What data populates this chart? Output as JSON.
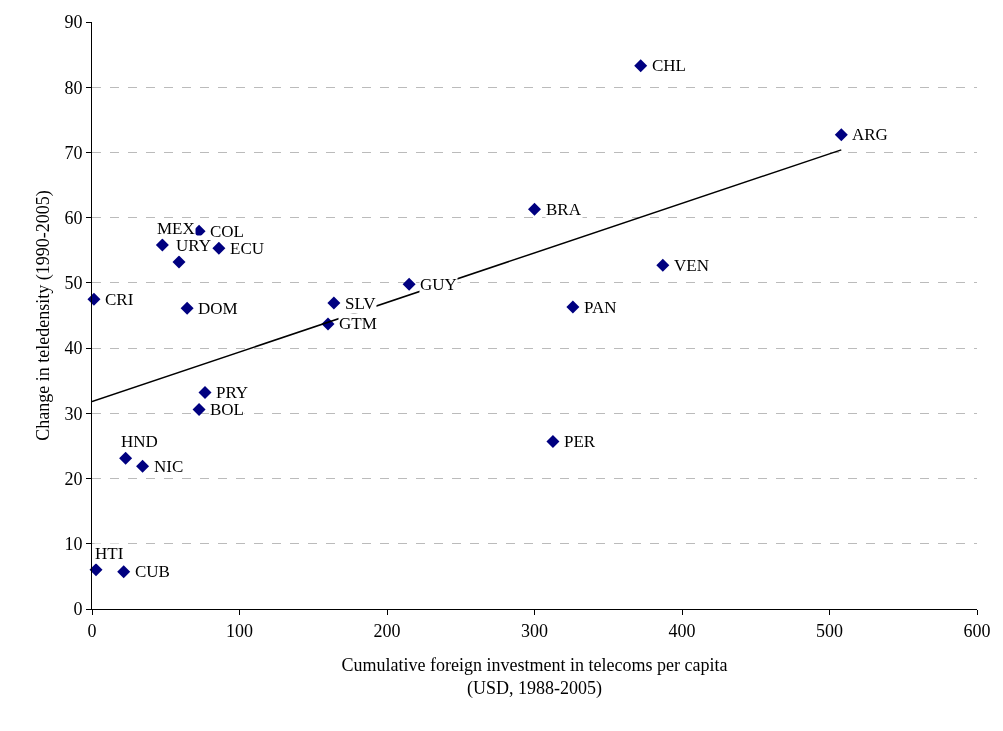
{
  "chart_data": {
    "type": "scatter",
    "xlabel": "Cumulative foreign investment in telecoms per capita\n(USD, 1988-2005)",
    "ylabel": "Change in teledensity (1990-2005)",
    "xlim": [
      0,
      600
    ],
    "xticks": [
      0,
      100,
      200,
      300,
      400,
      500,
      600
    ],
    "ylim": [
      0,
      90
    ],
    "yticks": [
      0,
      10,
      20,
      30,
      40,
      50,
      60,
      70,
      80,
      90
    ],
    "grid": "y",
    "marker": "diamond",
    "series": [
      {
        "color": "#000080",
        "x": [
          372,
          508,
          300,
          387,
          326,
          312.5,
          215,
          164,
          160,
          72.6,
          47.7,
          86,
          59,
          1.3,
          64.5,
          76.6,
          72.6,
          22.8,
          34.3,
          2.7,
          21.5
        ],
        "values": [
          83.3,
          72.7,
          61.3,
          52.7,
          46.3,
          25.7,
          49.8,
          46.9,
          43.7,
          57.9,
          55.8,
          55.3,
          53.2,
          47.5,
          46.1,
          33.2,
          30.6,
          23.1,
          21.9,
          6.0,
          5.7
        ]
      },
      {
        "type": "line",
        "marker": "none",
        "color": "#000000",
        "x": [
          0,
          508
        ],
        "values": [
          31.8,
          70.4
        ]
      }
    ],
    "annotations": [
      {
        "text": "CHL",
        "x": 372,
        "y": 83.3
      },
      {
        "text": "ARG",
        "x": 508,
        "y": 72.7
      },
      {
        "text": "BRA",
        "x": 300,
        "y": 61.3
      },
      {
        "text": "VEN",
        "x": 387,
        "y": 52.7
      },
      {
        "text": "PAN",
        "x": 326,
        "y": 46.3
      },
      {
        "text": "PER",
        "x": 312.5,
        "y": 25.7
      },
      {
        "text": "GUY",
        "x": 215,
        "y": 49.8
      },
      {
        "text": "SLV",
        "x": 164,
        "y": 46.9
      },
      {
        "text": "GTM",
        "x": 160,
        "y": 43.7
      },
      {
        "text": "COL",
        "x": 72.6,
        "y": 57.9
      },
      {
        "text": "MEX",
        "x": 47.7,
        "y": 55.8
      },
      {
        "text": "ECU",
        "x": 86,
        "y": 55.3
      },
      {
        "text": "URY",
        "x": 59,
        "y": 53.2
      },
      {
        "text": "CRI",
        "x": 1.3,
        "y": 47.5
      },
      {
        "text": "DOM",
        "x": 64.5,
        "y": 46.1
      },
      {
        "text": "PRY",
        "x": 76.6,
        "y": 33.2
      },
      {
        "text": "BOL",
        "x": 72.6,
        "y": 30.6
      },
      {
        "text": "HND",
        "x": 22.8,
        "y": 23.1
      },
      {
        "text": "NIC",
        "x": 34.3,
        "y": 21.9
      },
      {
        "text": "HTI",
        "x": 2.7,
        "y": 6.0
      },
      {
        "text": "CUB",
        "x": 21.5,
        "y": 5.7
      }
    ]
  }
}
